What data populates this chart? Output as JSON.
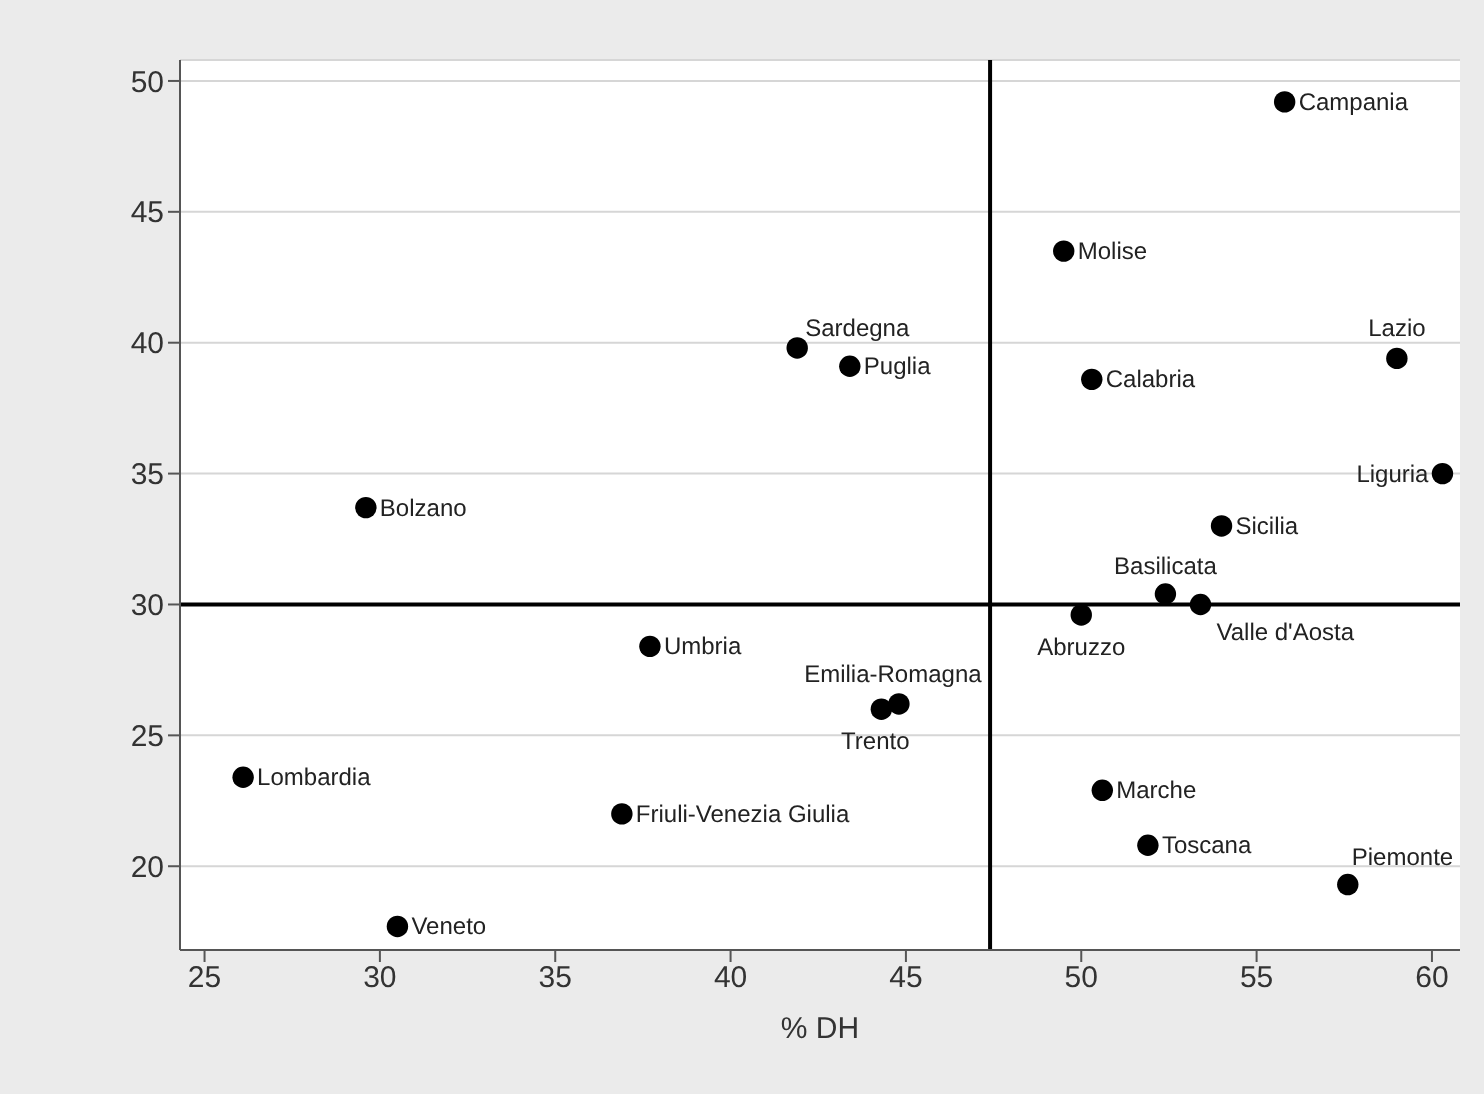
{
  "chart_data": {
    "type": "scatter",
    "xlabel": "% DH",
    "marker": "circle",
    "series": [
      {
        "name": "Campania",
        "color": "#000000",
        "x": [
          55.8
        ],
        "values": [
          49.2
        ]
      },
      {
        "name": "Molise",
        "color": "#000000",
        "x": [
          49.5
        ],
        "values": [
          43.5
        ]
      },
      {
        "name": "Sardegna",
        "color": "#000000",
        "x": [
          41.9
        ],
        "values": [
          39.8
        ]
      },
      {
        "name": "Puglia",
        "color": "#000000",
        "x": [
          43.4
        ],
        "values": [
          39.1
        ]
      },
      {
        "name": "Calabria",
        "color": "#000000",
        "x": [
          50.3
        ],
        "values": [
          38.6
        ]
      },
      {
        "name": "Lazio",
        "color": "#000000",
        "x": [
          59.0
        ],
        "values": [
          39.4
        ]
      },
      {
        "name": "Liguria",
        "color": "#000000",
        "x": [
          60.3
        ],
        "values": [
          35.0
        ]
      },
      {
        "name": "Bolzano",
        "color": "#000000",
        "x": [
          29.6
        ],
        "values": [
          33.7
        ]
      },
      {
        "name": "Sicilia",
        "color": "#000000",
        "x": [
          54.0
        ],
        "values": [
          33.0
        ]
      },
      {
        "name": "Basilicata",
        "color": "#000000",
        "x": [
          52.4
        ],
        "values": [
          30.4
        ]
      },
      {
        "name": "Umbria",
        "color": "#000000",
        "x": [
          37.7
        ],
        "values": [
          28.4
        ]
      },
      {
        "name": "Valle d'Aosta",
        "color": "#000000",
        "x": [
          53.4
        ],
        "values": [
          30.0
        ]
      },
      {
        "name": "Abruzzo",
        "color": "#000000",
        "x": [
          50.0
        ],
        "values": [
          29.6
        ]
      },
      {
        "name": "Emilia-Romagna",
        "color": "#000000",
        "x": [
          44.8
        ],
        "values": [
          26.2
        ]
      },
      {
        "name": "Trento",
        "color": "#000000",
        "x": [
          44.3
        ],
        "values": [
          26.0
        ]
      },
      {
        "name": "Lombardia",
        "color": "#000000",
        "x": [
          26.1
        ],
        "values": [
          23.4
        ]
      },
      {
        "name": "Friuli-Venezia Giulia",
        "color": "#000000",
        "x": [
          36.9
        ],
        "values": [
          22.0
        ]
      },
      {
        "name": "Marche",
        "color": "#000000",
        "x": [
          50.6
        ],
        "values": [
          22.9
        ]
      },
      {
        "name": "Toscana",
        "color": "#000000",
        "x": [
          51.9
        ],
        "values": [
          20.8
        ]
      },
      {
        "name": "Piemonte",
        "color": "#000000",
        "x": [
          57.6
        ],
        "values": [
          19.3
        ]
      },
      {
        "name": "Veneto",
        "color": "#000000",
        "x": [
          30.5
        ],
        "values": [
          17.7
        ]
      }
    ],
    "xlim": [
      24.3,
      60.8
    ],
    "xticks": [
      25,
      30,
      35,
      40,
      45,
      50,
      55,
      60
    ],
    "ylim": [
      16.8,
      50.8
    ],
    "yticks": [
      20,
      25,
      30,
      35,
      40,
      45,
      50
    ],
    "grid": "y",
    "ref_lines": [
      {
        "axis": "x",
        "value": 47.4,
        "color": "#000000"
      },
      {
        "axis": "y",
        "value": 30.0,
        "color": "#000000"
      }
    ]
  }
}
